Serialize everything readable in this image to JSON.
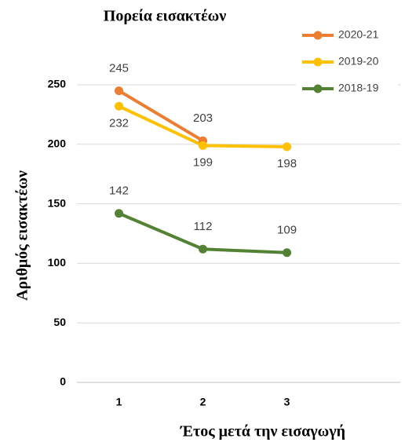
{
  "chart_data": {
    "type": "line",
    "title": "Πορεία εισακτέων",
    "x_label": "Έτος μετά την εισαγωγή",
    "y_label": "Αριθμός εισακτέων",
    "x": [
      1,
      2,
      3
    ],
    "series": [
      {
        "name": "2020-21",
        "color": "#ed7d31",
        "values": [
          245,
          203,
          null
        ],
        "label_side": "above"
      },
      {
        "name": "2019-20",
        "color": "#ffc000",
        "values": [
          232,
          199,
          198
        ],
        "label_side": "below"
      },
      {
        "name": "2018-19",
        "color": "#548235",
        "values": [
          142,
          112,
          109
        ],
        "label_side": "above"
      }
    ],
    "xlim": [
      0.5,
      4.35
    ],
    "xticks": [
      1,
      2,
      3
    ],
    "ylim": [
      0,
      250
    ],
    "yticks": [
      0,
      50,
      100,
      150,
      200,
      250
    ],
    "grid": true,
    "legend": "upper right"
  }
}
